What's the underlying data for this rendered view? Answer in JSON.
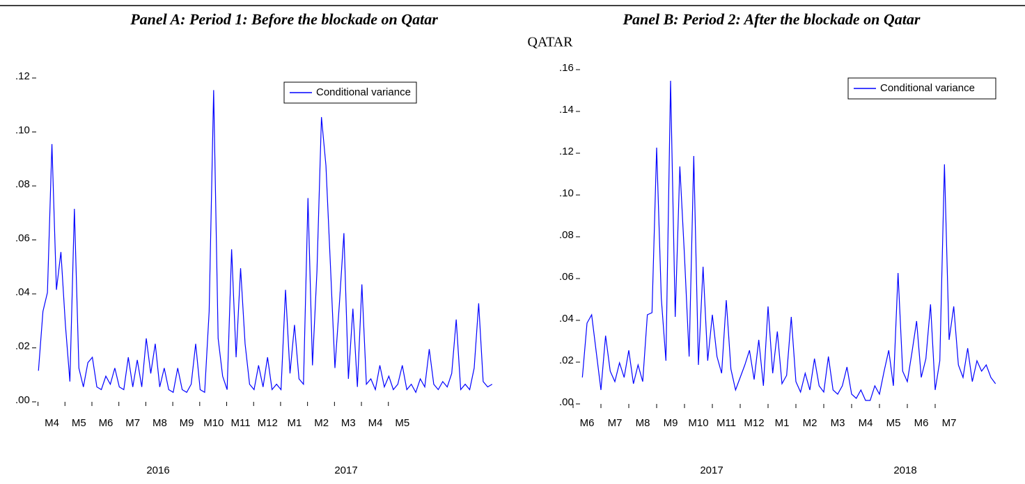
{
  "figure_title": "QATAR",
  "chart_data": [
    {
      "type": "line",
      "title": "Panel A: Period 1: Before the blockade on Qatar",
      "categories": [
        null,
        null,
        null,
        "M4",
        null,
        null,
        null,
        null,
        null,
        "M5",
        null,
        null,
        null,
        null,
        null,
        "M6",
        null,
        null,
        null,
        null,
        null,
        "M7",
        null,
        null,
        null,
        null,
        null,
        "M8",
        null,
        null,
        null,
        null,
        null,
        "M9",
        null,
        null,
        null,
        null,
        null,
        "M10",
        null,
        null,
        null,
        null,
        null,
        "M11",
        null,
        null,
        null,
        null,
        null,
        "M12",
        null,
        null,
        null,
        null,
        null,
        "M1",
        null,
        null,
        null,
        null,
        null,
        "M2",
        null,
        null,
        null,
        null,
        null,
        "M3",
        null,
        null,
        null,
        null,
        null,
        "M4",
        null,
        null,
        null,
        null,
        null,
        "M5",
        null,
        null,
        null,
        null,
        null,
        null,
        null,
        null,
        null,
        null,
        null,
        null,
        null,
        null,
        null,
        null,
        null,
        null,
        null,
        null
      ],
      "year_labels": [
        "2016",
        "2017"
      ],
      "series": [
        {
          "name": "Conditional variance",
          "color": "#0000ff",
          "values": [
            0.011,
            0.033,
            0.04,
            0.095,
            0.041,
            0.055,
            0.028,
            0.007,
            0.071,
            0.012,
            0.005,
            0.014,
            0.016,
            0.005,
            0.004,
            0.009,
            0.006,
            0.012,
            0.005,
            0.004,
            0.016,
            0.005,
            0.015,
            0.005,
            0.023,
            0.01,
            0.021,
            0.005,
            0.012,
            0.004,
            0.003,
            0.012,
            0.004,
            0.003,
            0.006,
            0.021,
            0.004,
            0.003,
            0.033,
            0.115,
            0.023,
            0.009,
            0.004,
            0.056,
            0.016,
            0.049,
            0.021,
            0.006,
            0.004,
            0.013,
            0.005,
            0.016,
            0.004,
            0.006,
            0.004,
            0.041,
            0.01,
            0.028,
            0.008,
            0.006,
            0.075,
            0.013,
            0.048,
            0.105,
            0.087,
            0.05,
            0.012,
            0.036,
            0.062,
            0.008,
            0.034,
            0.005,
            0.043,
            0.006,
            0.008,
            0.004,
            0.013,
            0.005,
            0.009,
            0.004,
            0.006,
            0.013,
            0.004,
            0.006,
            0.003,
            0.008,
            0.005,
            0.019,
            0.006,
            0.004,
            0.007,
            0.005,
            0.01,
            0.03,
            0.004,
            0.006,
            0.004,
            0.012,
            0.036,
            0.007,
            0.005,
            0.006
          ]
        }
      ],
      "ylim": [
        0,
        0.12
      ],
      "yticks": [
        {
          "value": 0,
          "label": ".00"
        },
        {
          "value": 0.02,
          "label": ".02"
        },
        {
          "value": 0.04,
          "label": ".04"
        },
        {
          "value": 0.06,
          "label": ".06"
        },
        {
          "value": 0.08,
          "label": ".08"
        },
        {
          "value": 0.1,
          "label": ".10"
        },
        {
          "value": 0.12,
          "label": ".12"
        }
      ],
      "legend": "upper right"
    },
    {
      "type": "line",
      "title": "Panel B: Period 2: After the blockade on Qatar",
      "categories": [
        null,
        "M6",
        null,
        null,
        null,
        null,
        null,
        "M7",
        null,
        null,
        null,
        null,
        null,
        "M8",
        null,
        null,
        null,
        null,
        null,
        "M9",
        null,
        null,
        null,
        null,
        null,
        "M10",
        null,
        null,
        null,
        null,
        null,
        "M11",
        null,
        null,
        null,
        null,
        null,
        "M12",
        null,
        null,
        null,
        null,
        null,
        "M1",
        null,
        null,
        null,
        null,
        null,
        "M2",
        null,
        null,
        null,
        null,
        null,
        "M3",
        null,
        null,
        null,
        null,
        null,
        "M4",
        null,
        null,
        null,
        null,
        null,
        "M5",
        null,
        null,
        null,
        null,
        null,
        "M6",
        null,
        null,
        null,
        null,
        null,
        "M7",
        null,
        null,
        null,
        null,
        null,
        null,
        null,
        null,
        null,
        null
      ],
      "year_labels": [
        "2017",
        "2018"
      ],
      "series": [
        {
          "name": "Conditional variance",
          "color": "#0000ff",
          "values": [
            0.012,
            0.038,
            0.042,
            0.024,
            0.006,
            0.032,
            0.015,
            0.01,
            0.019,
            0.012,
            0.025,
            0.009,
            0.018,
            0.01,
            0.042,
            0.043,
            0.122,
            0.05,
            0.02,
            0.154,
            0.041,
            0.113,
            0.07,
            0.022,
            0.118,
            0.018,
            0.065,
            0.02,
            0.042,
            0.022,
            0.014,
            0.049,
            0.016,
            0.006,
            0.012,
            0.018,
            0.025,
            0.011,
            0.03,
            0.008,
            0.046,
            0.014,
            0.034,
            0.009,
            0.013,
            0.041,
            0.01,
            0.005,
            0.014,
            0.006,
            0.021,
            0.008,
            0.005,
            0.022,
            0.006,
            0.004,
            0.008,
            0.017,
            0.004,
            0.002,
            0.006,
            0.001,
            0.001,
            0.008,
            0.004,
            0.015,
            0.025,
            0.008,
            0.062,
            0.015,
            0.01,
            0.024,
            0.039,
            0.012,
            0.021,
            0.047,
            0.006,
            0.02,
            0.114,
            0.03,
            0.046,
            0.018,
            0.012,
            0.026,
            0.01,
            0.02,
            0.015,
            0.018,
            0.012,
            0.009
          ]
        }
      ],
      "ylim": [
        0,
        0.16
      ],
      "yticks": [
        {
          "value": 0,
          "label": ".00"
        },
        {
          "value": 0.02,
          "label": ".02"
        },
        {
          "value": 0.04,
          "label": ".04"
        },
        {
          "value": 0.06,
          "label": ".06"
        },
        {
          "value": 0.08,
          "label": ".08"
        },
        {
          "value": 0.1,
          "label": ".10"
        },
        {
          "value": 0.12,
          "label": ".12"
        },
        {
          "value": 0.14,
          "label": ".14"
        },
        {
          "value": 0.16,
          "label": ".16"
        }
      ],
      "legend": "upper right"
    }
  ]
}
